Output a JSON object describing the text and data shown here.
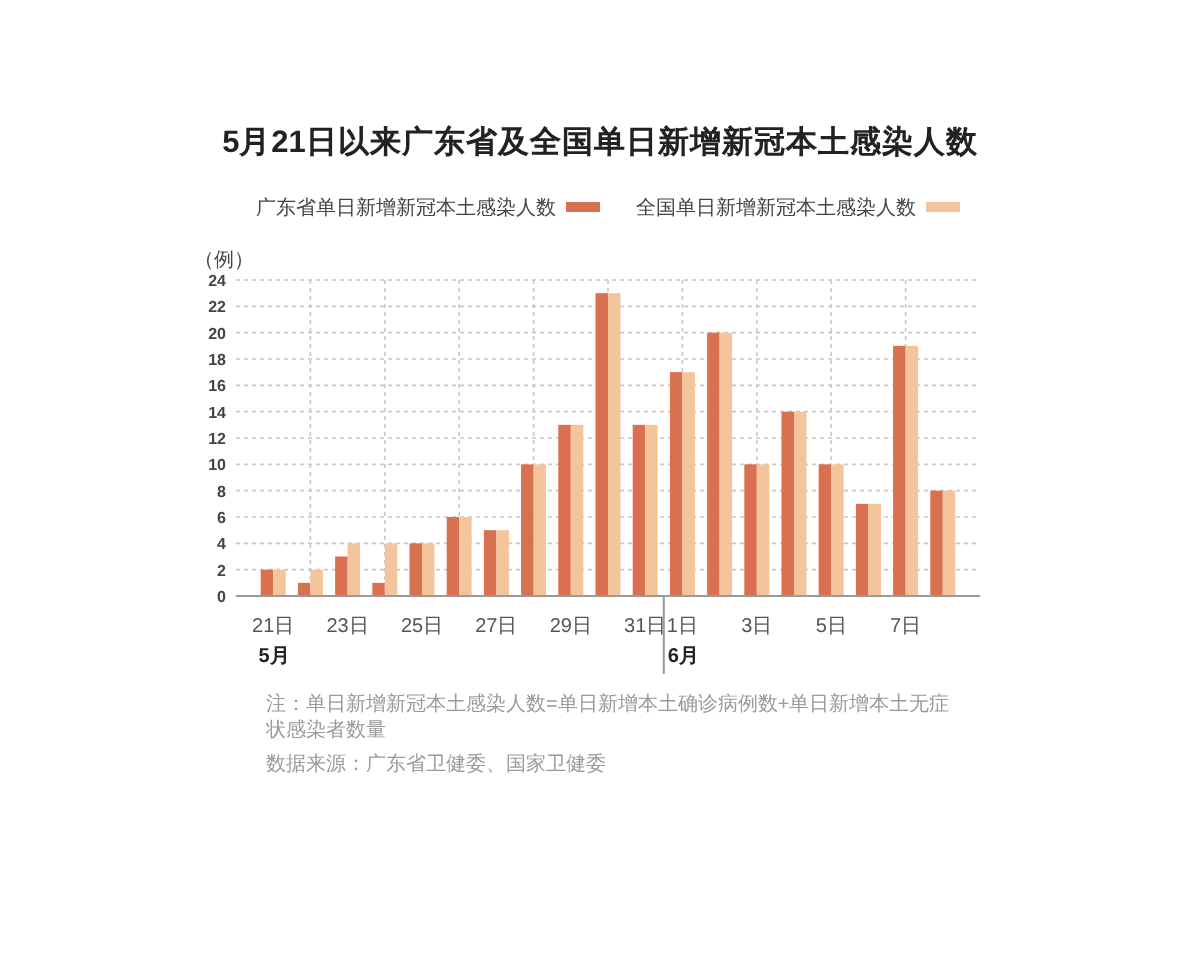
{
  "chart_data": {
    "type": "bar",
    "title": "5月21日以来广东省及全国单日新增新冠本土感染人数",
    "ylabel": "（例）",
    "x": [
      "--05-21",
      "--05-22",
      "--05-23",
      "--05-24",
      "--05-25",
      "--05-26",
      "--05-27",
      "--05-28",
      "--05-29",
      "--05-30",
      "--05-31",
      "--06-01",
      "--06-02",
      "--06-03",
      "--06-04",
      "--06-05",
      "--06-06",
      "--06-07",
      "--06-08"
    ],
    "xlim": [
      "--05-20",
      "--06-09"
    ],
    "xticks": [
      {
        "value": "--05-21",
        "label": "21日"
      },
      {
        "value": "--05-23",
        "label": "23日"
      },
      {
        "value": "--05-25",
        "label": "25日"
      },
      {
        "value": "--05-27",
        "label": "27日"
      },
      {
        "value": "--05-29",
        "label": "29日"
      },
      {
        "value": "--05-31",
        "label": "31日"
      },
      {
        "value": "--06-01",
        "label": "1日"
      },
      {
        "value": "--06-03",
        "label": "3日"
      },
      {
        "value": "--06-05",
        "label": "5日"
      },
      {
        "value": "--06-07",
        "label": "7日"
      }
    ],
    "series": [
      {
        "name": "广东省单日新增新冠本土感染人数",
        "color": "#d9704f",
        "values": [
          2,
          1,
          3,
          1,
          4,
          6,
          5,
          10,
          13,
          23,
          13,
          17,
          20,
          10,
          14,
          10,
          7,
          19,
          8
        ]
      },
      {
        "name": "全国单日新增新冠本土感染人数",
        "color": "#f4c59c",
        "values": [
          2,
          2,
          4,
          4,
          4,
          6,
          5,
          10,
          13,
          23,
          13,
          17,
          20,
          10,
          14,
          10,
          7,
          19,
          8
        ]
      }
    ],
    "ylim": [
      0,
      24
    ],
    "yticks": [
      0,
      2,
      4,
      6,
      8,
      10,
      12,
      14,
      16,
      18,
      20,
      22,
      24
    ],
    "grid": true,
    "legend": "top",
    "annotations": [
      "5月",
      "6月",
      "注：单日新增新冠本土感染人数=单日新增本土确诊病例数+单日新增本土无症状感染者数量",
      "数据来源：广东省卫健委、国家卫健委"
    ]
  }
}
